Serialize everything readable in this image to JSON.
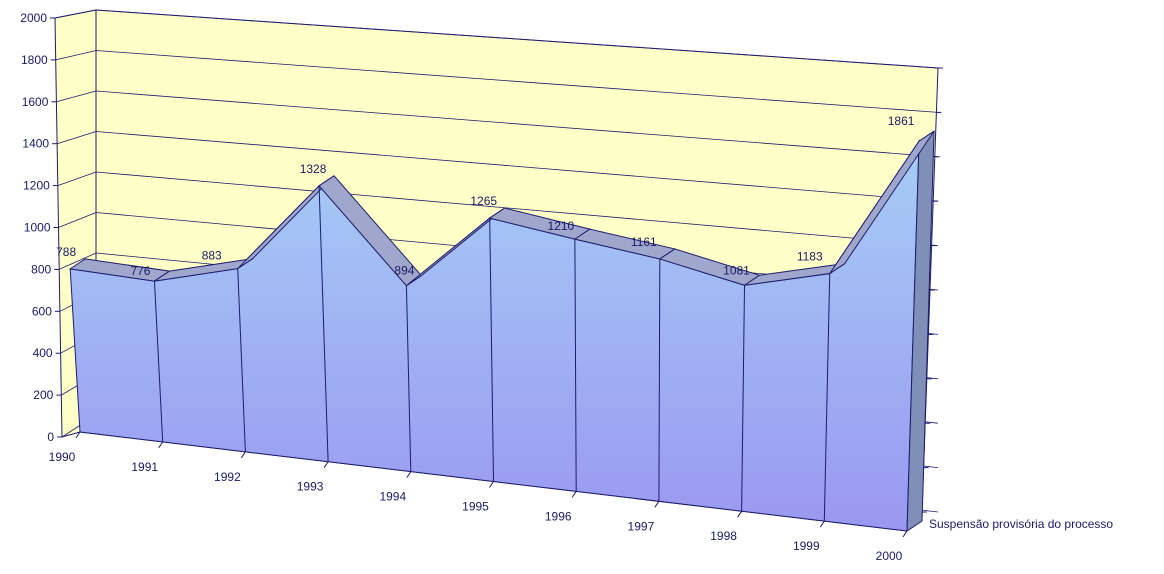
{
  "chart_data": {
    "type": "area",
    "categories": [
      "1990",
      "1991",
      "1992",
      "1993",
      "1994",
      "1995",
      "1996",
      "1997",
      "1998",
      "1999",
      "2000"
    ],
    "series": [
      {
        "name": "Suspensão provisória do processo",
        "values": [
          788,
          776,
          883,
          1328,
          894,
          1265,
          1210,
          1161,
          1081,
          1183,
          1861
        ]
      }
    ],
    "y_ticks": [
      "0",
      "200",
      "400",
      "600",
      "800",
      "1000",
      "1200",
      "1400",
      "1600",
      "1800",
      "2000"
    ],
    "ylim": [
      0,
      2000
    ],
    "grid": true,
    "three_d": true
  },
  "colors": {
    "wall_back": "#ffffc8",
    "wall_floor": "#ffffc8",
    "area_front_top": "#a6cdf6",
    "area_front_bottom": "#9a98f0",
    "area_ridge": "#9fa7cc",
    "text": "#1a1a66",
    "outline": "#1c1c6e"
  }
}
